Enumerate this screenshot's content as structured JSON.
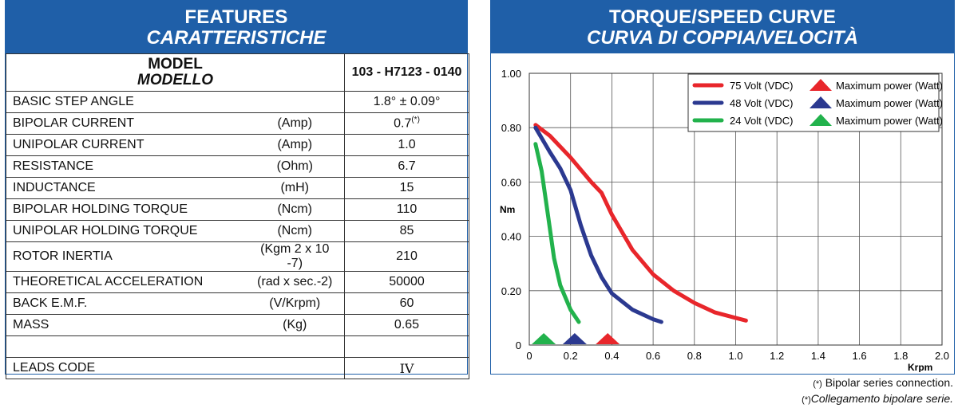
{
  "features": {
    "title": "FEATURES",
    "title_it": "CARATTERISTICHE",
    "model_label": "MODEL",
    "model_label_it": "MODELLO",
    "model_value": "103 - H7123 - 0140",
    "rows": [
      {
        "name": "BASIC STEP ANGLE",
        "unit": "",
        "value": "1.8° ± 0.09°"
      },
      {
        "name": "BIPOLAR CURRENT",
        "unit": "(Amp)",
        "value": "0.7",
        "note": "(*)"
      },
      {
        "name": "UNIPOLAR CURRENT",
        "unit": "(Amp)",
        "value": "1.0"
      },
      {
        "name": "RESISTANCE",
        "unit": "(Ohm)",
        "value": "6.7"
      },
      {
        "name": "INDUCTANCE",
        "unit": "(mH)",
        "value": "15"
      },
      {
        "name": "BIPOLAR HOLDING TORQUE",
        "unit": "(Ncm)",
        "value": "110"
      },
      {
        "name": "UNIPOLAR HOLDING TORQUE",
        "unit": "(Ncm)",
        "value": "85"
      },
      {
        "name": "ROTOR INERTIA",
        "unit": "(Kgm 2 x 10 -7)",
        "value": "210"
      },
      {
        "name": "THEORETICAL ACCELERATION",
        "unit": "(rad x sec.-2)",
        "value": "50000"
      },
      {
        "name": "BACK E.M.F.",
        "unit": "(V/Krpm)",
        "value": "60"
      },
      {
        "name": "MASS",
        "unit": "(Kg)",
        "value": "0.65"
      },
      {
        "name": "",
        "unit": "",
        "value": ""
      },
      {
        "name": "LEADS CODE",
        "unit": "",
        "value": "IV"
      }
    ]
  },
  "chart_header": {
    "title": "TORQUE/SPEED CURVE",
    "title_it": "CURVA DI COPPIA/VELOCITÀ"
  },
  "chart_data": {
    "type": "line",
    "ylabel": "Nm",
    "xlabel": "Krpm",
    "xlim": [
      0,
      2.0
    ],
    "ylim": [
      0,
      1.0
    ],
    "x_ticks": [
      "0",
      "0.2",
      "0.4",
      "0.6",
      "0.8",
      "1.0",
      "1.2",
      "1.4",
      "1.6",
      "1.8",
      "2.0"
    ],
    "y_ticks": [
      "0",
      "0.20",
      "0.40",
      "0.60",
      "0.80",
      "1.00"
    ],
    "grid": true,
    "legend_position": "top-right",
    "max_power_label": "Maximum power (Watt)",
    "series": [
      {
        "name": "75 Volt (VDC)",
        "color": "#e8262b",
        "points": [
          [
            0.03,
            0.81
          ],
          [
            0.1,
            0.77
          ],
          [
            0.2,
            0.69
          ],
          [
            0.3,
            0.6
          ],
          [
            0.35,
            0.56
          ],
          [
            0.4,
            0.48
          ],
          [
            0.5,
            0.35
          ],
          [
            0.6,
            0.26
          ],
          [
            0.7,
            0.2
          ],
          [
            0.8,
            0.155
          ],
          [
            0.9,
            0.12
          ],
          [
            1.0,
            0.1
          ],
          [
            1.05,
            0.09
          ]
        ],
        "max_power_x": 0.38
      },
      {
        "name": "48 Volt (VDC)",
        "color": "#2b3990",
        "points": [
          [
            0.03,
            0.8
          ],
          [
            0.1,
            0.71
          ],
          [
            0.15,
            0.65
          ],
          [
            0.2,
            0.57
          ],
          [
            0.25,
            0.44
          ],
          [
            0.3,
            0.33
          ],
          [
            0.35,
            0.25
          ],
          [
            0.4,
            0.19
          ],
          [
            0.5,
            0.13
          ],
          [
            0.6,
            0.095
          ],
          [
            0.64,
            0.085
          ]
        ],
        "max_power_x": 0.22
      },
      {
        "name": "24 Volt (VDC)",
        "color": "#22b24c",
        "points": [
          [
            0.03,
            0.74
          ],
          [
            0.06,
            0.64
          ],
          [
            0.09,
            0.48
          ],
          [
            0.12,
            0.32
          ],
          [
            0.15,
            0.22
          ],
          [
            0.2,
            0.13
          ],
          [
            0.24,
            0.085
          ]
        ],
        "max_power_x": 0.07
      }
    ]
  },
  "footnote": {
    "en": "Bipolar series connection.",
    "it": "Collegamento bipolare serie.",
    "mark": "(*)"
  }
}
